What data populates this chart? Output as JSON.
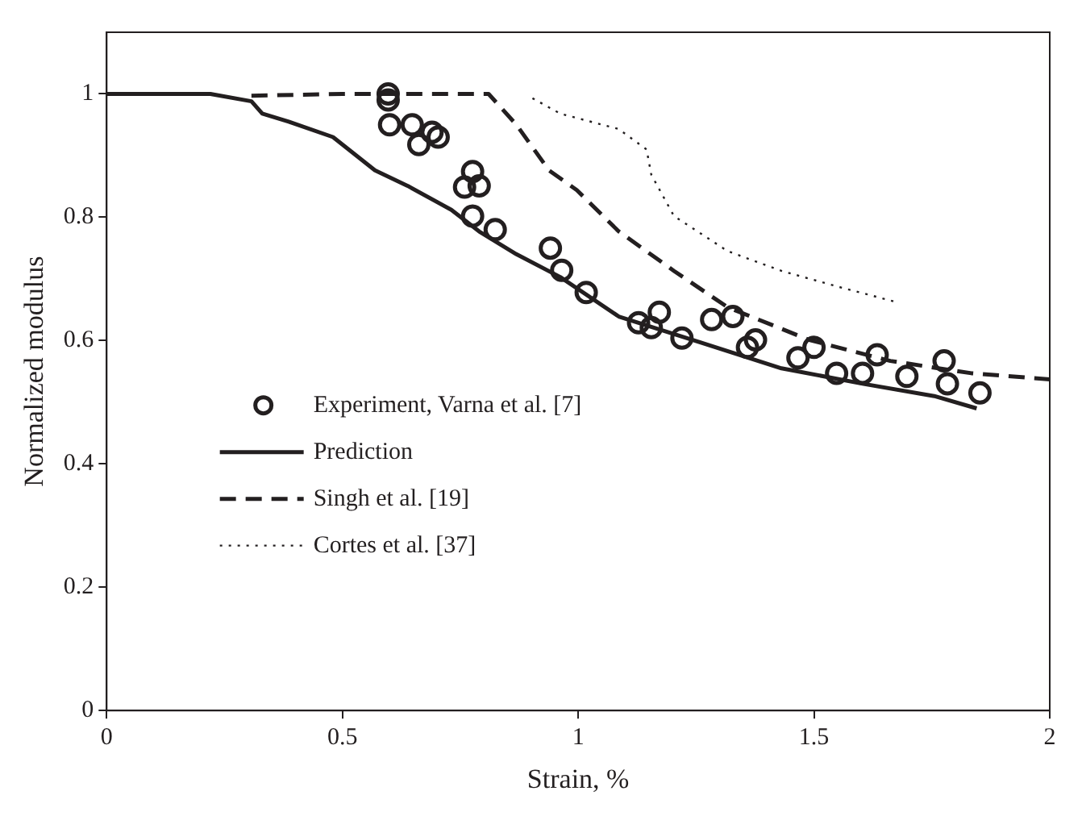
{
  "chart_data": {
    "type": "line",
    "xlabel": "Strain, %",
    "ylabel": "Normalized modulus",
    "xlim": [
      0,
      2
    ],
    "xticks": [
      0,
      0.5,
      1,
      1.5,
      2
    ],
    "ylim": [
      0,
      1.1
    ],
    "yticks": [
      0,
      0.2,
      0.4,
      0.6,
      0.8,
      1
    ],
    "grid": false,
    "legend": "bottom left",
    "series": [
      {
        "name": "Experiment, Varna et al. [7]",
        "type": "scatter",
        "marker": "circle",
        "color": "#231f20",
        "x": [
          0.597,
          0.597,
          0.6,
          0.648,
          0.662,
          0.69,
          0.703,
          0.776,
          0.759,
          0.79,
          0.776,
          0.824,
          0.941,
          0.965,
          1.017,
          1.128,
          1.155,
          1.172,
          1.22,
          1.283,
          1.328,
          1.376,
          1.359,
          1.466,
          1.5,
          1.548,
          1.603,
          1.634,
          1.697,
          1.776,
          1.783,
          1.852
        ],
        "values": [
          1.0,
          0.99,
          0.95,
          0.95,
          0.918,
          0.938,
          0.93,
          0.874,
          0.849,
          0.851,
          0.802,
          0.78,
          0.75,
          0.714,
          0.678,
          0.629,
          0.621,
          0.646,
          0.604,
          0.634,
          0.639,
          0.601,
          0.589,
          0.572,
          0.589,
          0.547,
          0.547,
          0.577,
          0.542,
          0.567,
          0.53,
          0.515
        ]
      },
      {
        "name": "Prediction",
        "type": "line",
        "line_style": "solid",
        "color": "#231f20",
        "x": [
          0,
          0.22,
          0.307,
          0.33,
          0.386,
          0.48,
          0.569,
          0.638,
          0.731,
          0.79,
          0.869,
          0.962,
          1.086,
          1.259,
          1.431,
          1.603,
          1.755,
          1.845
        ],
        "values": [
          1.0,
          1.0,
          0.988,
          0.968,
          0.955,
          0.93,
          0.876,
          0.851,
          0.812,
          0.777,
          0.74,
          0.703,
          0.639,
          0.597,
          0.555,
          0.53,
          0.51,
          0.49
        ]
      },
      {
        "name": "Singh et al. [19]",
        "type": "line",
        "line_style": "dashed",
        "color": "#231f20",
        "x": [
          0.307,
          0.5,
          0.81,
          0.869,
          0.938,
          0.997,
          1.086,
          1.203,
          1.317,
          1.49,
          1.662,
          1.834,
          2.0
        ],
        "values": [
          0.997,
          1.0,
          1.0,
          0.95,
          0.876,
          0.844,
          0.777,
          0.713,
          0.654,
          0.601,
          0.567,
          0.547,
          0.537
        ]
      },
      {
        "name": "Cortes et al. [37]",
        "type": "line",
        "line_style": "dotted",
        "color": "#231f20",
        "x": [
          0.903,
          0.962,
          1.086,
          1.145,
          1.155,
          1.203,
          1.317,
          1.431,
          1.548,
          1.672
        ],
        "values": [
          0.993,
          0.968,
          0.943,
          0.91,
          0.869,
          0.802,
          0.745,
          0.713,
          0.688,
          0.663
        ]
      }
    ]
  }
}
